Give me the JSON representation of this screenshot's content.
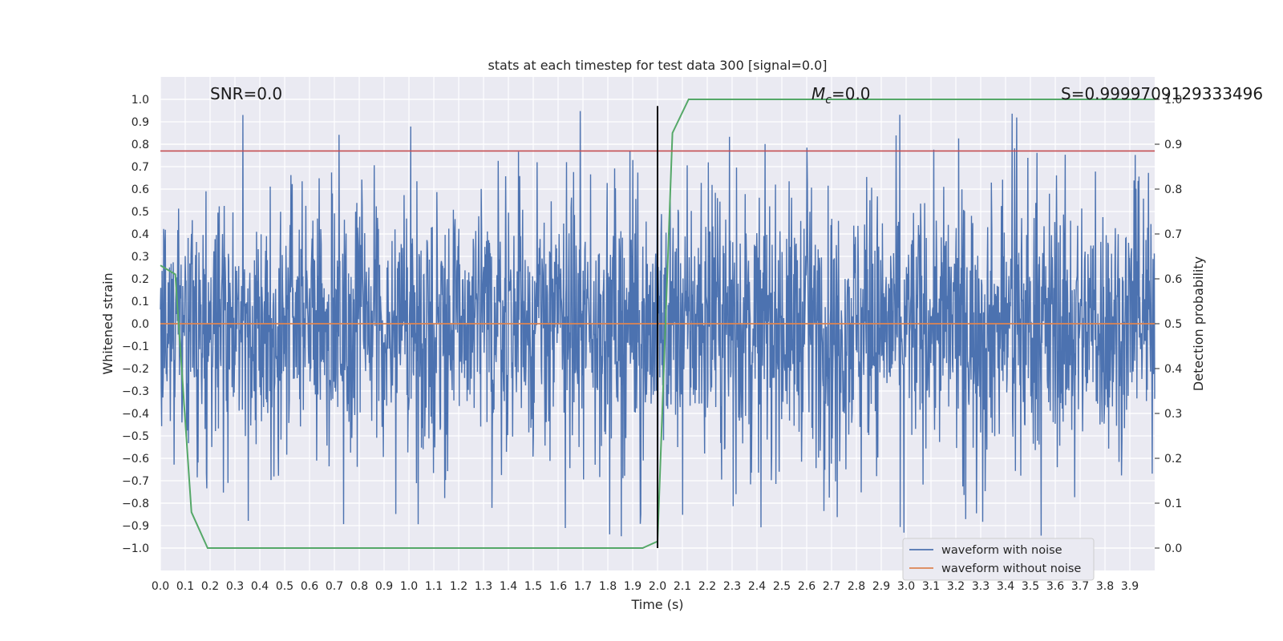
{
  "chart_data": {
    "type": "line",
    "title": "stats at each timestep for test data 300 [signal=0.0]",
    "xlabel": "Time (s)",
    "ylabel": "Whitened strain",
    "y2label": "Detection probability",
    "xlim": [
      0.0,
      4.0
    ],
    "ylim": [
      -1.1,
      1.1
    ],
    "y2lim": [
      -0.05,
      1.05
    ],
    "xticks": [
      0.0,
      0.1,
      0.2,
      0.3,
      0.4,
      0.5,
      0.6,
      0.7,
      0.8,
      0.9,
      1.0,
      1.1,
      1.2,
      1.3,
      1.4,
      1.5,
      1.6,
      1.7,
      1.8,
      1.9,
      2.0,
      2.1,
      2.2,
      2.3,
      2.4,
      2.5,
      2.6,
      2.7,
      2.8,
      2.9,
      3.0,
      3.1,
      3.2,
      3.3,
      3.4,
      3.5,
      3.6,
      3.7,
      3.8,
      3.9
    ],
    "yticks": [
      1.0,
      0.9,
      0.8,
      0.7,
      0.6,
      0.5,
      0.4,
      0.3,
      0.2,
      0.1,
      0.0,
      -0.1,
      -0.2,
      -0.3,
      -0.4,
      -0.5,
      -0.6,
      -0.7,
      -0.8,
      -0.9,
      -1.0
    ],
    "y2ticks": [
      1.0,
      0.9,
      0.8,
      0.7,
      0.6,
      0.5,
      0.4,
      0.3,
      0.2,
      0.1,
      0.0
    ],
    "grid": true,
    "legend": "lower-right",
    "annotations": {
      "snr": "SNR=0.0",
      "mc_symbol": "M",
      "mc_sub": "c",
      "mc_value": "=0.0",
      "s": "S=0.9999709129333496"
    },
    "series": [
      {
        "name": "waveform with noise",
        "axis": "left",
        "color": "#4c72b0",
        "note": "dense whitened noise samples, roughly uniform in [-1, 1]",
        "t_range": [
          0.0,
          4.0
        ],
        "amplitude_range": [
          -1.0,
          1.0
        ]
      },
      {
        "name": "waveform without noise",
        "axis": "left",
        "color": "#dd8452",
        "x": [
          0.0,
          4.0
        ],
        "y": [
          0.0,
          0.0
        ]
      },
      {
        "axis": "right",
        "color": "#55a868",
        "x": [
          0.0,
          0.06,
          0.125,
          0.19,
          1.94,
          2.0,
          2.06,
          2.125,
          4.0
        ],
        "y": [
          0.63,
          0.61,
          0.08,
          0.0,
          0.0,
          0.015,
          0.925,
          1.0,
          1.0
        ]
      }
    ],
    "threshold_line": {
      "axis": "left",
      "y": 0.77,
      "color": "#c44e52"
    },
    "vertical_line": {
      "x": 2.0,
      "y_range": [
        -1.0,
        0.97
      ],
      "color": "#000000"
    }
  }
}
